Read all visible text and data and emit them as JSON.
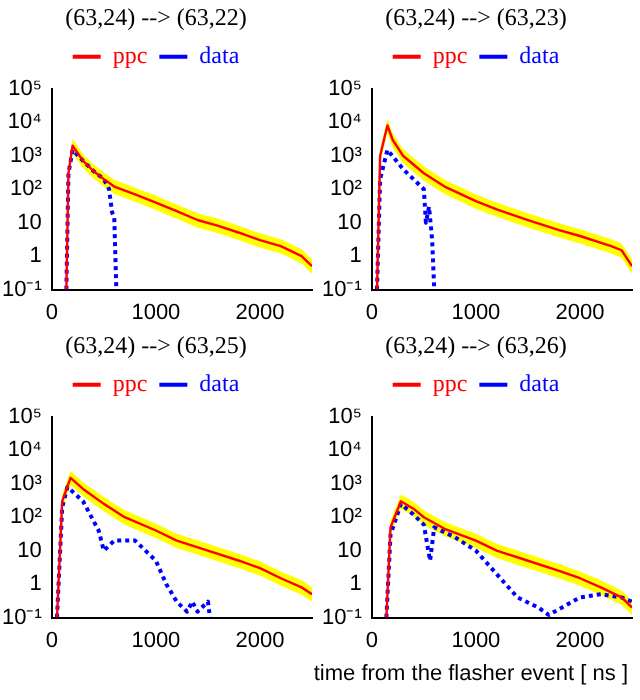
{
  "chart_data": [
    {
      "type": "line",
      "title": "(63,24) --> (63,22)",
      "legend": "top",
      "grid": false,
      "log": "y",
      "xlim": [
        0,
        2500
      ],
      "xticks": [
        0,
        1000,
        2000
      ],
      "ylim": [
        0.1,
        100000
      ],
      "yticks": [
        {
          "value": 100000,
          "label": "10⁵"
        },
        {
          "value": 10000,
          "label": "10⁴"
        },
        {
          "value": 1000,
          "label": "10³"
        },
        {
          "value": 100,
          "label": "10²"
        },
        {
          "value": 10,
          "label": "10"
        },
        {
          "value": 1,
          "label": "1"
        },
        {
          "value": 0.1,
          "label": "10⁻¹"
        }
      ],
      "series": [
        {
          "name": "ppc",
          "color": "#ff0000",
          "line_style": "solid",
          "x": [
            140,
            160,
            200,
            250,
            300,
            400,
            500,
            600,
            800,
            1000,
            1200,
            1400,
            1600,
            1800,
            2000,
            2200,
            2400,
            2500
          ],
          "values": [
            0.1,
            300,
            2000,
            1200,
            700,
            350,
            200,
            120,
            70,
            40,
            22,
            12,
            8,
            5,
            3,
            2,
            1,
            0.5
          ],
          "upper": [
            0.16,
            480,
            3200,
            1900,
            1100,
            560,
            320,
            190,
            110,
            64,
            35,
            19,
            13,
            8,
            4.8,
            3.2,
            1.6,
            0.8
          ],
          "lower": [
            0.1,
            180,
            1200,
            720,
            420,
            210,
            120,
            72,
            42,
            24,
            13,
            7,
            4.8,
            3,
            1.8,
            1.2,
            0.6,
            0.3
          ]
        },
        {
          "name": "data",
          "color": "#0000ff",
          "line_style": "dotted",
          "x": [
            140,
            160,
            200,
            300,
            400,
            500,
            550,
            580,
            600,
            620
          ],
          "values": [
            0.1,
            300,
            1500,
            700,
            350,
            200,
            100,
            20,
            15,
            0.1
          ]
        }
      ]
    },
    {
      "type": "line",
      "title": "(63,24) --> (63,23)",
      "legend": "top",
      "grid": false,
      "log": "y",
      "xlim": [
        0,
        2500
      ],
      "xticks": [
        0,
        1000,
        2000
      ],
      "ylim": [
        0.1,
        100000
      ],
      "yticks": [
        {
          "value": 100000,
          "label": "10⁵"
        },
        {
          "value": 10000,
          "label": "10⁴"
        },
        {
          "value": 1000,
          "label": "10³"
        },
        {
          "value": 100,
          "label": "10²"
        },
        {
          "value": 10,
          "label": "10"
        },
        {
          "value": 1,
          "label": "1"
        },
        {
          "value": 0.1,
          "label": "10⁻¹"
        }
      ],
      "series": [
        {
          "name": "ppc",
          "color": "#ff0000",
          "line_style": "solid",
          "x": [
            50,
            80,
            150,
            200,
            300,
            500,
            700,
            1000,
            1200,
            1500,
            1800,
            2000,
            2300,
            2400,
            2500
          ],
          "values": [
            0.1,
            1000,
            8000,
            3000,
            1000,
            300,
            120,
            44,
            25,
            12,
            6,
            4,
            2,
            1.5,
            0.5
          ],
          "upper": [
            0.16,
            1600,
            12800,
            4800,
            1600,
            480,
            190,
            70,
            40,
            19,
            9.6,
            6.4,
            3.2,
            2.4,
            0.8
          ],
          "lower": [
            0.1,
            600,
            4800,
            1800,
            600,
            180,
            72,
            26,
            15,
            7.2,
            3.6,
            2.4,
            1.2,
            0.9,
            0.3
          ]
        },
        {
          "name": "data",
          "color": "#0000ff",
          "line_style": "dotted",
          "x": [
            50,
            80,
            150,
            300,
            400,
            500,
            520,
            550,
            580,
            600
          ],
          "values": [
            0.1,
            200,
            1500,
            400,
            200,
            100,
            10,
            30,
            3,
            0.1
          ]
        }
      ]
    },
    {
      "type": "line",
      "title": "(63,24) --> (63,25)",
      "legend": "top",
      "grid": false,
      "log": "y",
      "xlim": [
        0,
        2500
      ],
      "xticks": [
        0,
        1000,
        2000
      ],
      "ylim": [
        0.1,
        100000
      ],
      "yticks": [
        {
          "value": 100000,
          "label": "10⁵"
        },
        {
          "value": 10000,
          "label": "10⁴"
        },
        {
          "value": 1000,
          "label": "10³"
        },
        {
          "value": 100,
          "label": "10²"
        },
        {
          "value": 10,
          "label": "10"
        },
        {
          "value": 1,
          "label": "1"
        },
        {
          "value": 0.1,
          "label": "10⁻¹"
        }
      ],
      "series": [
        {
          "name": "ppc",
          "color": "#ff0000",
          "line_style": "solid",
          "x": [
            50,
            100,
            180,
            300,
            500,
            700,
            1000,
            1200,
            1500,
            1800,
            2000,
            2200,
            2400,
            2500
          ],
          "values": [
            0.1,
            300,
            1500,
            700,
            250,
            100,
            40,
            20,
            10,
            5,
            3,
            1.5,
            0.8,
            0.5
          ],
          "upper": [
            0.16,
            480,
            2400,
            1100,
            400,
            160,
            64,
            32,
            16,
            8,
            4.8,
            2.4,
            1.3,
            0.8
          ],
          "lower": [
            0.1,
            180,
            900,
            420,
            150,
            60,
            24,
            12,
            6,
            3,
            1.8,
            0.9,
            0.48,
            0.3
          ]
        },
        {
          "name": "data",
          "color": "#0000ff",
          "line_style": "dotted",
          "x": [
            50,
            100,
            150,
            300,
            450,
            500,
            600,
            800,
            1000,
            1100,
            1200,
            1300,
            1350,
            1400,
            1500,
            1520
          ],
          "values": [
            0.1,
            200,
            800,
            300,
            40,
            10,
            20,
            20,
            5,
            1,
            0.3,
            0.15,
            0.3,
            0.15,
            0.3,
            0.1
          ]
        }
      ]
    },
    {
      "type": "line",
      "title": "(63,24) --> (63,26)",
      "xlabel": "time from the flasher event [ ns ]",
      "legend": "top",
      "grid": false,
      "log": "y",
      "xlim": [
        0,
        2500
      ],
      "xticks": [
        0,
        1000,
        2000
      ],
      "ylim": [
        0.1,
        100000
      ],
      "yticks": [
        {
          "value": 100000,
          "label": "10⁵"
        },
        {
          "value": 10000,
          "label": "10⁴"
        },
        {
          "value": 1000,
          "label": "10³"
        },
        {
          "value": 100,
          "label": "10²"
        },
        {
          "value": 10,
          "label": "10"
        },
        {
          "value": 1,
          "label": "1"
        },
        {
          "value": 0.1,
          "label": "10⁻¹"
        }
      ],
      "series": [
        {
          "name": "ppc",
          "color": "#ff0000",
          "line_style": "solid",
          "x": [
            140,
            180,
            280,
            400,
            500,
            700,
            1000,
            1200,
            1500,
            1800,
            2000,
            2200,
            2400,
            2500
          ],
          "values": [
            0.1,
            50,
            300,
            180,
            100,
            45,
            20,
            10,
            5,
            2.5,
            1.5,
            0.8,
            0.4,
            0.2
          ],
          "upper": [
            0.16,
            80,
            480,
            290,
            160,
            72,
            32,
            16,
            8,
            4,
            2.4,
            1.3,
            0.64,
            0.32
          ],
          "lower": [
            0.1,
            30,
            180,
            108,
            60,
            27,
            12,
            6,
            3,
            1.5,
            0.9,
            0.48,
            0.24,
            0.12
          ]
        },
        {
          "name": "data",
          "color": "#0000ff",
          "line_style": "dotted",
          "x": [
            140,
            180,
            280,
            400,
            500,
            560,
            600,
            800,
            1000,
            1200,
            1400,
            1600,
            1700,
            2000,
            2200,
            2400,
            2500
          ],
          "values": [
            0.1,
            30,
            250,
            120,
            60,
            5,
            50,
            25,
            10,
            2,
            0.4,
            0.2,
            0.12,
            0.4,
            0.5,
            0.4,
            0.3
          ]
        }
      ]
    }
  ]
}
